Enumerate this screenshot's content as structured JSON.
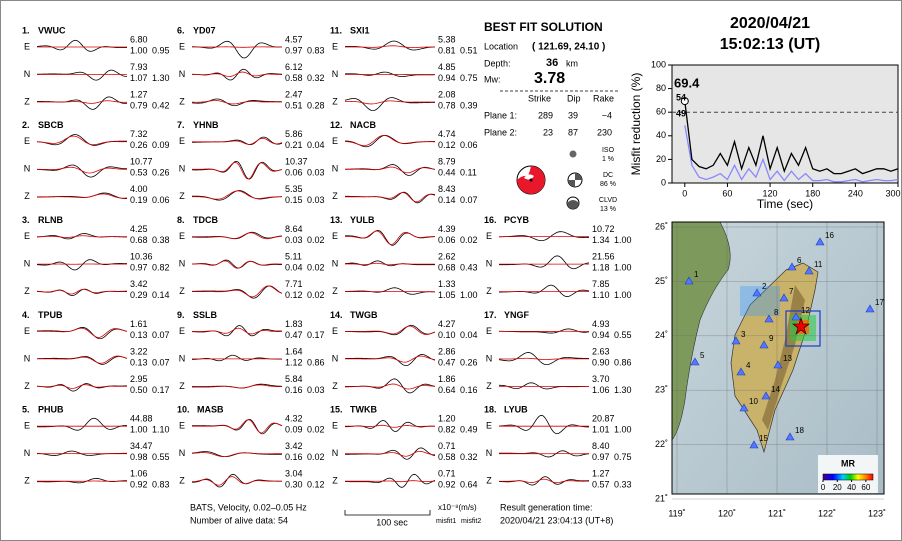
{
  "header": {
    "date": "2020/04/21",
    "time": "15:02:13  (UT)"
  },
  "stations": [
    {
      "label": "1.",
      "name": "VWUC",
      "components": [
        [
          "E",
          "6.80",
          "1.00",
          "0.95"
        ],
        [
          "N",
          "7.93",
          "1.07",
          "1.30"
        ],
        [
          "Z",
          "1.27",
          "0.79",
          "0.42"
        ]
      ]
    },
    {
      "label": "2.",
      "name": "SBCB",
      "components": [
        [
          "E",
          "7.32",
          "0.26",
          "0.09"
        ],
        [
          "N",
          "10.77",
          "0.53",
          "0.26"
        ],
        [
          "Z",
          "4.00",
          "0.19",
          "0.06"
        ]
      ]
    },
    {
      "label": "3.",
      "name": "RLNB",
      "components": [
        [
          "E",
          "4.25",
          "0.68",
          "0.38"
        ],
        [
          "N",
          "10.36",
          "0.97",
          "0.82"
        ],
        [
          "Z",
          "3.42",
          "0.29",
          "0.14"
        ]
      ]
    },
    {
      "label": "4.",
      "name": "TPUB",
      "components": [
        [
          "E",
          "1.61",
          "0.13",
          "0.07"
        ],
        [
          "N",
          "3.22",
          "0.13",
          "0.07"
        ],
        [
          "Z",
          "2.95",
          "0.50",
          "0.17"
        ]
      ]
    },
    {
      "label": "5.",
      "name": "PHUB",
      "components": [
        [
          "E",
          "44.88",
          "1.00",
          "1.10"
        ],
        [
          "N",
          "34.47",
          "0.98",
          "0.55"
        ],
        [
          "Z",
          "1.06",
          "0.92",
          "0.83"
        ]
      ]
    },
    {
      "label": "6.",
      "name": "YD07",
      "components": [
        [
          "E",
          "4.57",
          "0.97",
          "0.83"
        ],
        [
          "N",
          "6.12",
          "0.58",
          "0.32"
        ],
        [
          "Z",
          "2.47",
          "0.51",
          "0.28"
        ]
      ]
    },
    {
      "label": "7.",
      "name": "YHNB",
      "components": [
        [
          "E",
          "5.86",
          "0.21",
          "0.04"
        ],
        [
          "N",
          "10.37",
          "0.06",
          "0.03"
        ],
        [
          "Z",
          "5.35",
          "0.15",
          "0.03"
        ]
      ]
    },
    {
      "label": "8.",
      "name": "TDCB",
      "components": [
        [
          "E",
          "8.64",
          "0.03",
          "0.02"
        ],
        [
          "N",
          "5.11",
          "0.04",
          "0.02"
        ],
        [
          "Z",
          "7.71",
          "0.12",
          "0.02"
        ]
      ]
    },
    {
      "label": "9.",
      "name": "SSLB",
      "components": [
        [
          "E",
          "1.83",
          "0.47",
          "0.17"
        ],
        [
          "N",
          "1.64",
          "1.12",
          "0.86"
        ],
        [
          "Z",
          "5.84",
          "0.16",
          "0.03"
        ]
      ]
    },
    {
      "label": "10.",
      "name": "MASB",
      "components": [
        [
          "E",
          "4.32",
          "0.09",
          "0.02"
        ],
        [
          "N",
          "3.42",
          "0.16",
          "0.02"
        ],
        [
          "Z",
          "3.04",
          "0.30",
          "0.12"
        ]
      ]
    },
    {
      "label": "11.",
      "name": "SXI1",
      "components": [
        [
          "E",
          "5.38",
          "0.81",
          "0.51"
        ],
        [
          "N",
          "4.85",
          "0.94",
          "0.75"
        ],
        [
          "Z",
          "2.08",
          "0.78",
          "0.39"
        ]
      ]
    },
    {
      "label": "12.",
      "name": "NACB",
      "components": [
        [
          "E",
          "4.74",
          "0.12",
          "0.06"
        ],
        [
          "N",
          "8.79",
          "0.44",
          "0.11"
        ],
        [
          "Z",
          "8.43",
          "0.14",
          "0.07"
        ]
      ]
    },
    {
      "label": "13.",
      "name": "YULB",
      "components": [
        [
          "E",
          "4.39",
          "0.06",
          "0.02"
        ],
        [
          "N",
          "2.62",
          "0.68",
          "0.43"
        ],
        [
          "Z",
          "1.33",
          "1.05",
          "1.00"
        ]
      ]
    },
    {
      "label": "14.",
      "name": "TWGB",
      "components": [
        [
          "E",
          "4.27",
          "0.10",
          "0.04"
        ],
        [
          "N",
          "2.86",
          "0.47",
          "0.26"
        ],
        [
          "Z",
          "1.86",
          "0.64",
          "0.16"
        ]
      ]
    },
    {
      "label": "15.",
      "name": "TWKB",
      "components": [
        [
          "E",
          "1.20",
          "0.82",
          "0.49"
        ],
        [
          "N",
          "0.71",
          "0.58",
          "0.32"
        ],
        [
          "Z",
          "0.71",
          "0.92",
          "0.64"
        ]
      ]
    },
    {
      "label": "16.",
      "name": "PCYB",
      "components": [
        [
          "E",
          "10.72",
          "1.34",
          "1.00"
        ],
        [
          "N",
          "21.56",
          "1.18",
          "1.00"
        ],
        [
          "Z",
          "7.85",
          "1.10",
          "1.00"
        ]
      ]
    },
    {
      "label": "17.",
      "name": "YNGF",
      "components": [
        [
          "E",
          "4.93",
          "0.94",
          "0.55"
        ],
        [
          "N",
          "2.63",
          "0.90",
          "0.86"
        ],
        [
          "Z",
          "3.70",
          "1.06",
          "1.30"
        ]
      ]
    },
    {
      "label": "18.",
      "name": "LYUB",
      "components": [
        [
          "E",
          "20.87",
          "1.01",
          "1.00"
        ],
        [
          "N",
          "8.40",
          "0.97",
          "0.75"
        ],
        [
          "Z",
          "1.27",
          "0.57",
          "0.33"
        ]
      ]
    }
  ],
  "best_fit": {
    "title": "BEST FIT SOLUTION",
    "location_label": "Location",
    "location": "( 121.69, 24.10 )",
    "depth_label": "Depth:",
    "depth": "36",
    "depth_unit": "km",
    "mw_label": "Mw:",
    "mw": "3.78",
    "headers": [
      "Strike",
      "Dip",
      "Rake"
    ],
    "planes": [
      [
        "Plane 1:",
        "289",
        "39",
        "−4"
      ],
      [
        "Plane 2:",
        "23",
        "87",
        "230"
      ]
    ],
    "components": [
      [
        "ISO",
        "1 %"
      ],
      [
        "DC",
        "86 %"
      ],
      [
        "CLVD",
        "13 %"
      ]
    ]
  },
  "chart_data": {
    "type": "line",
    "xlabel": "Time (sec)",
    "ylabel": "Misfit reduction (%)",
    "x": [
      0,
      10,
      20,
      30,
      40,
      50,
      60,
      70,
      80,
      90,
      100,
      110,
      120,
      130,
      140,
      150,
      160,
      170,
      180,
      190,
      200,
      210,
      220,
      230,
      240,
      250,
      260,
      270,
      280,
      290,
      300
    ],
    "series": [
      {
        "color": "#000000",
        "values": [
          69.4,
          20,
          14,
          12,
          15,
          25,
          15,
          35,
          12,
          30,
          15,
          40,
          12,
          30,
          10,
          25,
          15,
          30,
          12,
          10,
          12,
          8,
          8,
          10,
          12,
          8,
          10,
          12,
          12,
          10,
          12
        ]
      },
      {
        "color": "#8888ff",
        "values": [
          49,
          15,
          5,
          3,
          5,
          8,
          3,
          15,
          3,
          12,
          5,
          20,
          3,
          10,
          2,
          10,
          3,
          8,
          2,
          2,
          3,
          1,
          1,
          2,
          3,
          1,
          2,
          3,
          2,
          2,
          3
        ]
      }
    ],
    "annotations": [
      {
        "text": "69.4",
        "color": "#dd0000"
      },
      {
        "text": "54",
        "color": "#999999"
      },
      {
        "text": "49",
        "color": "#8888ff"
      }
    ],
    "threshold": 60,
    "xlim": [
      -18,
      300
    ],
    "ylim": [
      0,
      100
    ],
    "xticks": [
      0,
      60,
      120,
      180,
      240,
      300
    ],
    "yticks": [
      0,
      20,
      40,
      60,
      80,
      100
    ]
  },
  "map": {
    "lonlim": [
      119,
      123
    ],
    "latlim": [
      21,
      26
    ],
    "lonticks": [
      {
        "value": 119,
        "label": "119˚"
      },
      {
        "value": 120,
        "label": "120˚"
      },
      {
        "value": 121,
        "label": "121˚"
      },
      {
        "value": 122,
        "label": "122˚"
      },
      {
        "value": 123,
        "label": "123˚"
      }
    ],
    "latticks": [
      {
        "value": 21,
        "label": "21˚"
      },
      {
        "value": 22,
        "label": "22˚"
      },
      {
        "value": 23,
        "label": "23˚"
      },
      {
        "value": 24,
        "label": "24˚"
      },
      {
        "value": 25,
        "label": "25˚"
      },
      {
        "value": 26,
        "label": "26˚"
      }
    ],
    "station_labels": [
      "1",
      "2",
      "3",
      "4",
      "5",
      "6",
      "7",
      "8",
      "9",
      "10",
      "11",
      "12",
      "13",
      "14",
      "15",
      "16",
      "17",
      "18"
    ],
    "colorbar_title": "MR",
    "colorbar_lim": [
      0,
      70
    ],
    "colorbar_ticks": [
      0,
      20,
      40,
      60
    ]
  },
  "footer": {
    "network": "BATS, Velocity, 0.02–0.05 Hz",
    "alive": "Number of alive data: 54",
    "scale": "100 sec",
    "units": "x10⁻⁸(m/s)",
    "misfit1": "misfit1",
    "misfit2": "misfit2",
    "result_label": "Result generation time:",
    "result_time": "2020/04/21 23:04:13 (UT+8)"
  }
}
